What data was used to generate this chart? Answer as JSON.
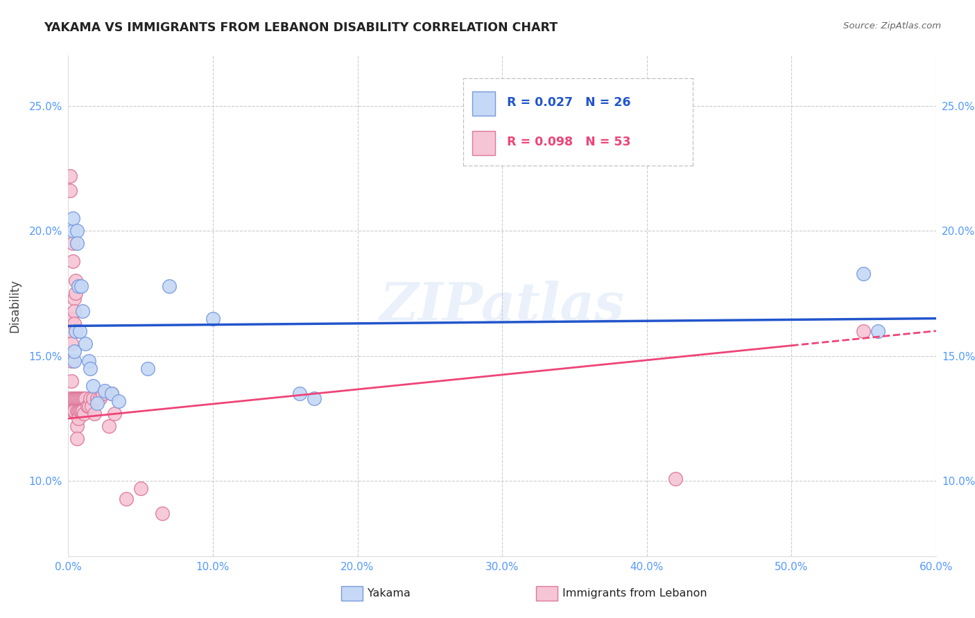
{
  "title": "YAKAMA VS IMMIGRANTS FROM LEBANON DISABILITY CORRELATION CHART",
  "source": "Source: ZipAtlas.com",
  "ylabel": "Disability",
  "xlim": [
    0.0,
    0.6
  ],
  "ylim": [
    0.07,
    0.27
  ],
  "x_ticks": [
    0.0,
    0.1,
    0.2,
    0.3,
    0.4,
    0.5,
    0.6
  ],
  "x_tick_labels": [
    "0.0%",
    "10.0%",
    "20.0%",
    "30.0%",
    "40.0%",
    "50.0%",
    "60.0%"
  ],
  "y_ticks": [
    0.1,
    0.15,
    0.2,
    0.25
  ],
  "y_tick_labels": [
    "10.0%",
    "15.0%",
    "20.0%",
    "25.0%"
  ],
  "grid_color": "#cccccc",
  "background_color": "#ffffff",
  "title_color": "#222222",
  "axis_color": "#5599ff",
  "watermark": "ZIPatlas",
  "legend_R1": "R = 0.027",
  "legend_N1": "N = 26",
  "legend_R2": "R = 0.098",
  "legend_N2": "N = 53",
  "yakama_color": "#c5d8f5",
  "lebanon_color": "#f5c5d5",
  "yakama_edge": "#7799dd",
  "lebanon_edge": "#dd7799",
  "trend1_color": "#2255cc",
  "trend2_color": "#ee4477",
  "yakama_points_x": [
    0.003,
    0.003,
    0.004,
    0.004,
    0.005,
    0.006,
    0.006,
    0.007,
    0.008,
    0.009,
    0.01,
    0.012,
    0.014,
    0.015,
    0.017,
    0.02,
    0.025,
    0.03,
    0.035,
    0.055,
    0.07,
    0.1,
    0.16,
    0.17,
    0.55,
    0.56
  ],
  "yakama_points_y": [
    0.2,
    0.205,
    0.148,
    0.152,
    0.16,
    0.2,
    0.195,
    0.178,
    0.16,
    0.178,
    0.168,
    0.155,
    0.148,
    0.145,
    0.138,
    0.131,
    0.136,
    0.135,
    0.132,
    0.145,
    0.178,
    0.165,
    0.135,
    0.133,
    0.183,
    0.16
  ],
  "lebanon_points_x": [
    0.001,
    0.001,
    0.001,
    0.002,
    0.002,
    0.002,
    0.002,
    0.002,
    0.003,
    0.003,
    0.003,
    0.003,
    0.004,
    0.004,
    0.004,
    0.004,
    0.004,
    0.005,
    0.005,
    0.005,
    0.006,
    0.006,
    0.006,
    0.006,
    0.007,
    0.007,
    0.007,
    0.008,
    0.008,
    0.009,
    0.009,
    0.01,
    0.01,
    0.011,
    0.011,
    0.012,
    0.013,
    0.014,
    0.015,
    0.016,
    0.017,
    0.018,
    0.02,
    0.022,
    0.024,
    0.028,
    0.03,
    0.032,
    0.04,
    0.05,
    0.065,
    0.42,
    0.55
  ],
  "lebanon_points_y": [
    0.222,
    0.216,
    0.133,
    0.165,
    0.16,
    0.155,
    0.148,
    0.14,
    0.195,
    0.188,
    0.133,
    0.128,
    0.173,
    0.168,
    0.163,
    0.133,
    0.128,
    0.18,
    0.175,
    0.133,
    0.133,
    0.128,
    0.122,
    0.117,
    0.133,
    0.128,
    0.125,
    0.133,
    0.128,
    0.133,
    0.128,
    0.133,
    0.128,
    0.133,
    0.127,
    0.133,
    0.13,
    0.13,
    0.133,
    0.13,
    0.133,
    0.127,
    0.133,
    0.133,
    0.135,
    0.122,
    0.135,
    0.127,
    0.093,
    0.097,
    0.087,
    0.101,
    0.16
  ],
  "trend_yakama_start_y": 0.162,
  "trend_yakama_end_y": 0.165,
  "trend_lebanon_start_y": 0.125,
  "trend_lebanon_end_y": 0.16,
  "trend_dashed_start_x": 0.5
}
